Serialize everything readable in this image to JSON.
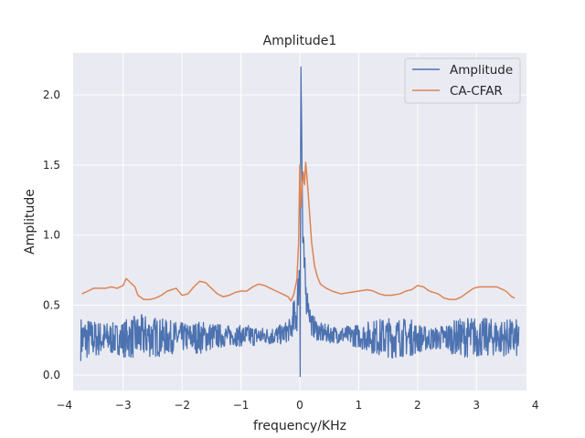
{
  "chart_data": {
    "type": "line",
    "title": "Amplitude1",
    "xlabel": "frequency/KHz",
    "ylabel": "Amplitude",
    "xlim": [
      -3.85,
      3.85
    ],
    "ylim": [
      -0.11,
      2.3
    ],
    "x_ticks": [
      -4,
      -3,
      -2,
      -1,
      0,
      1,
      2,
      3,
      4
    ],
    "x_tick_labels": [
      "−4",
      "−3",
      "−2",
      "−1",
      "0",
      "1",
      "2",
      "3",
      "4"
    ],
    "y_ticks": [
      0.0,
      0.5,
      1.0,
      1.5,
      2.0
    ],
    "y_tick_labels": [
      "0.0",
      "0.5",
      "1.0",
      "1.5",
      "2.0"
    ],
    "grid": true,
    "legend_position": "top-right",
    "series": [
      {
        "name": "Amplitude",
        "color": "#4c72b0",
        "style": "dense-noise",
        "x_range": [
          -3.72,
          3.72
        ],
        "points": [
          [
            -3.72,
            0.26
          ],
          [
            -3.5,
            0.26
          ],
          [
            -3.2,
            0.26
          ],
          [
            -3.0,
            0.26
          ],
          [
            -2.8,
            0.27
          ],
          [
            -2.6,
            0.28
          ],
          [
            -2.4,
            0.27
          ],
          [
            -2.2,
            0.27
          ],
          [
            -2.0,
            0.27
          ],
          [
            -1.7,
            0.27
          ],
          [
            -1.4,
            0.28
          ],
          [
            -1.1,
            0.28
          ],
          [
            -0.8,
            0.28
          ],
          [
            -0.5,
            0.28
          ],
          [
            -0.3,
            0.29
          ],
          [
            -0.15,
            0.33
          ],
          [
            -0.05,
            0.45
          ],
          [
            0.0,
            0.8
          ],
          [
            0.02,
            2.2
          ],
          [
            0.05,
            0.95
          ],
          [
            0.1,
            0.6
          ],
          [
            0.2,
            0.36
          ],
          [
            0.35,
            0.3
          ],
          [
            0.6,
            0.29
          ],
          [
            1.0,
            0.28
          ],
          [
            1.4,
            0.27
          ],
          [
            1.8,
            0.27
          ],
          [
            2.2,
            0.26
          ],
          [
            2.6,
            0.27
          ],
          [
            3.0,
            0.27
          ],
          [
            3.4,
            0.27
          ],
          [
            3.72,
            0.26
          ]
        ],
        "envelope": [
          [
            -3.72,
            0.16
          ],
          [
            -3.45,
            0.13
          ],
          [
            -3.1,
            0.11
          ],
          [
            -2.95,
            0.14
          ],
          [
            -2.75,
            0.16
          ],
          [
            -2.5,
            0.15
          ],
          [
            -2.2,
            0.12
          ],
          [
            -1.9,
            0.1
          ],
          [
            -1.7,
            0.12
          ],
          [
            -1.4,
            0.09
          ],
          [
            -1.15,
            0.07
          ],
          [
            -0.9,
            0.08
          ],
          [
            -0.6,
            0.06
          ],
          [
            -0.35,
            0.07
          ],
          [
            -0.15,
            0.08
          ],
          [
            0.2,
            0.08
          ],
          [
            0.4,
            0.07
          ],
          [
            0.6,
            0.06
          ],
          [
            0.85,
            0.07
          ],
          [
            1.1,
            0.1
          ],
          [
            1.3,
            0.13
          ],
          [
            1.6,
            0.15
          ],
          [
            1.9,
            0.13
          ],
          [
            2.1,
            0.09
          ],
          [
            2.3,
            0.08
          ],
          [
            2.6,
            0.12
          ],
          [
            2.9,
            0.15
          ],
          [
            3.1,
            0.14
          ],
          [
            3.4,
            0.13
          ],
          [
            3.72,
            0.14
          ]
        ]
      },
      {
        "name": "CA-CFAR",
        "color": "#dd8452",
        "style": "line",
        "points": [
          [
            -3.7,
            0.58
          ],
          [
            -3.6,
            0.6
          ],
          [
            -3.5,
            0.62
          ],
          [
            -3.4,
            0.62
          ],
          [
            -3.3,
            0.62
          ],
          [
            -3.2,
            0.63
          ],
          [
            -3.1,
            0.62
          ],
          [
            -3.0,
            0.64
          ],
          [
            -2.95,
            0.69
          ],
          [
            -2.9,
            0.67
          ],
          [
            -2.8,
            0.63
          ],
          [
            -2.75,
            0.57
          ],
          [
            -2.65,
            0.54
          ],
          [
            -2.55,
            0.54
          ],
          [
            -2.45,
            0.55
          ],
          [
            -2.35,
            0.57
          ],
          [
            -2.25,
            0.6
          ],
          [
            -2.1,
            0.62
          ],
          [
            -2.0,
            0.57
          ],
          [
            -1.9,
            0.58
          ],
          [
            -1.8,
            0.63
          ],
          [
            -1.7,
            0.67
          ],
          [
            -1.6,
            0.66
          ],
          [
            -1.5,
            0.62
          ],
          [
            -1.4,
            0.58
          ],
          [
            -1.3,
            0.56
          ],
          [
            -1.2,
            0.57
          ],
          [
            -1.1,
            0.59
          ],
          [
            -1.0,
            0.6
          ],
          [
            -0.9,
            0.6
          ],
          [
            -0.8,
            0.63
          ],
          [
            -0.7,
            0.65
          ],
          [
            -0.6,
            0.64
          ],
          [
            -0.5,
            0.62
          ],
          [
            -0.4,
            0.6
          ],
          [
            -0.3,
            0.58
          ],
          [
            -0.2,
            0.56
          ],
          [
            -0.15,
            0.53
          ],
          [
            -0.1,
            0.58
          ],
          [
            -0.05,
            0.68
          ],
          [
            -0.02,
            0.95
          ],
          [
            0.0,
            1.5
          ],
          [
            0.02,
            1.2
          ],
          [
            0.04,
            1.35
          ],
          [
            0.06,
            1.45
          ],
          [
            0.08,
            1.36
          ],
          [
            0.1,
            1.52
          ],
          [
            0.12,
            1.42
          ],
          [
            0.15,
            1.25
          ],
          [
            0.2,
            0.95
          ],
          [
            0.25,
            0.78
          ],
          [
            0.3,
            0.7
          ],
          [
            0.35,
            0.65
          ],
          [
            0.45,
            0.62
          ],
          [
            0.55,
            0.6
          ],
          [
            0.7,
            0.58
          ],
          [
            0.85,
            0.59
          ],
          [
            1.0,
            0.6
          ],
          [
            1.15,
            0.61
          ],
          [
            1.25,
            0.6
          ],
          [
            1.35,
            0.58
          ],
          [
            1.45,
            0.57
          ],
          [
            1.55,
            0.57
          ],
          [
            1.7,
            0.58
          ],
          [
            1.8,
            0.6
          ],
          [
            1.9,
            0.61
          ],
          [
            2.0,
            0.64
          ],
          [
            2.1,
            0.63
          ],
          [
            2.2,
            0.6
          ],
          [
            2.35,
            0.58
          ],
          [
            2.45,
            0.55
          ],
          [
            2.55,
            0.54
          ],
          [
            2.65,
            0.54
          ],
          [
            2.75,
            0.56
          ],
          [
            2.85,
            0.59
          ],
          [
            2.95,
            0.62
          ],
          [
            3.05,
            0.63
          ],
          [
            3.2,
            0.63
          ],
          [
            3.35,
            0.63
          ],
          [
            3.5,
            0.6
          ],
          [
            3.6,
            0.56
          ],
          [
            3.65,
            0.55
          ]
        ]
      }
    ]
  }
}
